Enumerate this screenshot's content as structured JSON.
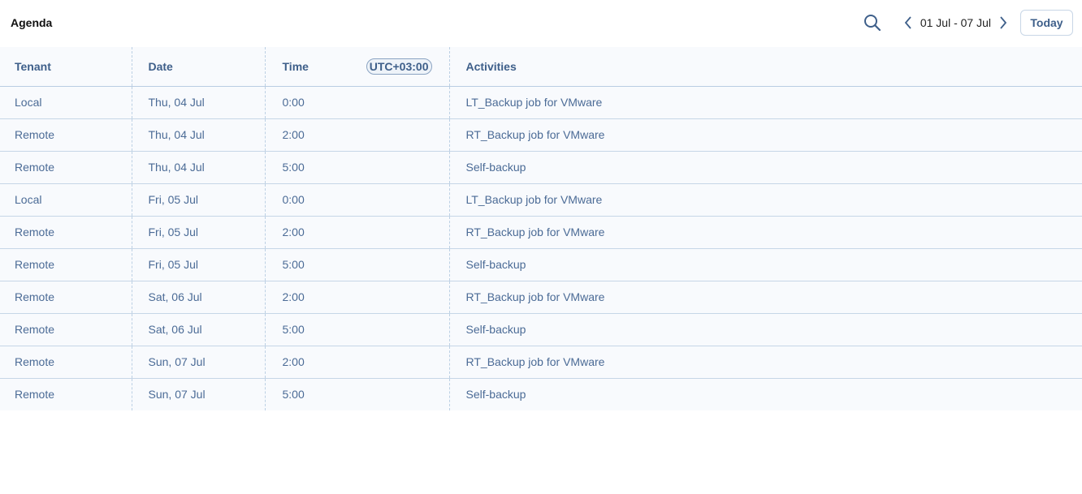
{
  "header": {
    "title": "Agenda",
    "date_range": "01 Jul - 07 Jul",
    "today_label": "Today"
  },
  "table": {
    "columns": {
      "tenant": "Tenant",
      "date": "Date",
      "time": "Time",
      "timezone": "UTC+03:00",
      "activities": "Activities"
    },
    "rows": [
      {
        "tenant": "Local",
        "date": "Thu, 04 Jul",
        "time": "0:00",
        "activity": "LT_Backup job for VMware"
      },
      {
        "tenant": "Remote",
        "date": "Thu, 04 Jul",
        "time": "2:00",
        "activity": "RT_Backup job for VMware"
      },
      {
        "tenant": "Remote",
        "date": "Thu, 04 Jul",
        "time": "5:00",
        "activity": "Self-backup"
      },
      {
        "tenant": "Local",
        "date": "Fri, 05 Jul",
        "time": "0:00",
        "activity": "LT_Backup job for VMware"
      },
      {
        "tenant": "Remote",
        "date": "Fri, 05 Jul",
        "time": "2:00",
        "activity": "RT_Backup job for VMware"
      },
      {
        "tenant": "Remote",
        "date": "Fri, 05 Jul",
        "time": "5:00",
        "activity": "Self-backup"
      },
      {
        "tenant": "Remote",
        "date": "Sat, 06 Jul",
        "time": "2:00",
        "activity": "RT_Backup job for VMware"
      },
      {
        "tenant": "Remote",
        "date": "Sat, 06 Jul",
        "time": "5:00",
        "activity": "Self-backup"
      },
      {
        "tenant": "Remote",
        "date": "Sun, 07 Jul",
        "time": "2:00",
        "activity": "RT_Backup job for VMware"
      },
      {
        "tenant": "Remote",
        "date": "Sun, 07 Jul",
        "time": "5:00",
        "activity": "Self-backup"
      }
    ]
  }
}
